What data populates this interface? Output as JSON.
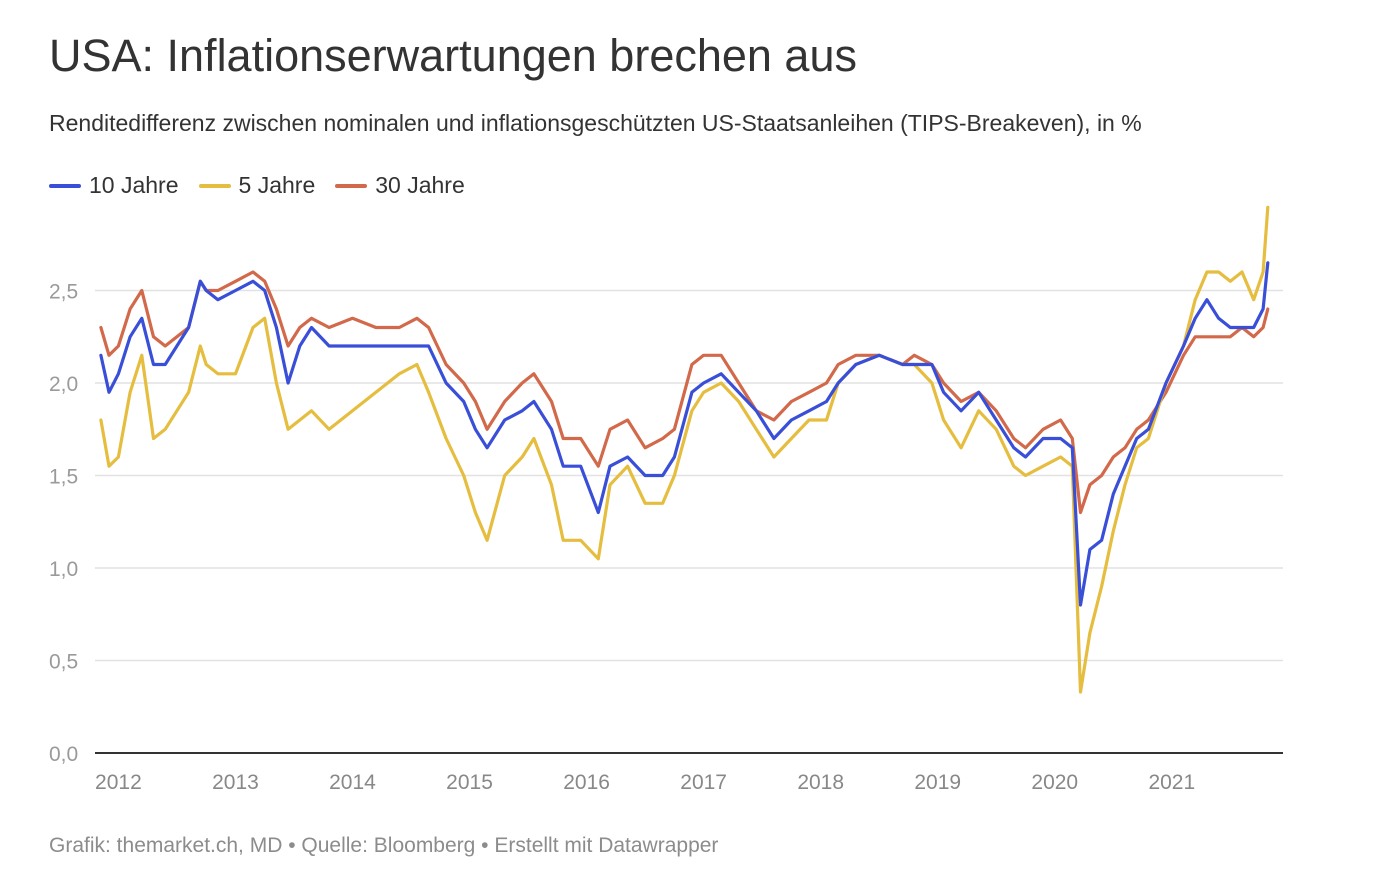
{
  "title": "USA: Inflationserwartungen brechen aus",
  "subtitle": "Renditedifferenz zwischen nominalen und inflationsgeschützten US-Staatsanleihen (TIPS-Breakeven), in %",
  "footer": "Grafik: themarket.ch, MD • Quelle: Bloomberg • Erstellt mit Datawrapper",
  "chart_data": {
    "type": "line",
    "x_unit": "year",
    "xlim": [
      2011.8,
      2021.95
    ],
    "ylim": [
      0,
      3.0
    ],
    "y_ticks": [
      0.0,
      0.5,
      1.0,
      1.5,
      2.0,
      2.5
    ],
    "y_tick_labels": [
      "0,0",
      "0,5",
      "1,0",
      "1,5",
      "2,0",
      "2,5"
    ],
    "x_ticks": [
      2012,
      2013,
      2014,
      2015,
      2016,
      2017,
      2018,
      2019,
      2020,
      2021
    ],
    "x_tick_labels": [
      "2012",
      "2013",
      "2014",
      "2015",
      "2016",
      "2017",
      "2018",
      "2019",
      "2020",
      "2021"
    ],
    "grid": "horizontal",
    "legend_position": "top-left",
    "series": [
      {
        "name": "10 Jahre",
        "color": "#3a4fd8",
        "x": [
          2011.85,
          2011.92,
          2012.0,
          2012.1,
          2012.2,
          2012.3,
          2012.4,
          2012.5,
          2012.6,
          2012.7,
          2012.75,
          2012.85,
          2013.0,
          2013.15,
          2013.25,
          2013.35,
          2013.45,
          2013.55,
          2013.65,
          2013.8,
          2014.0,
          2014.2,
          2014.4,
          2014.55,
          2014.65,
          2014.8,
          2014.95,
          2015.05,
          2015.15,
          2015.3,
          2015.45,
          2015.55,
          2015.7,
          2015.8,
          2015.95,
          2016.1,
          2016.2,
          2016.35,
          2016.5,
          2016.65,
          2016.75,
          2016.9,
          2017.0,
          2017.15,
          2017.3,
          2017.45,
          2017.6,
          2017.75,
          2017.9,
          2018.05,
          2018.15,
          2018.3,
          2018.5,
          2018.7,
          2018.8,
          2018.95,
          2019.05,
          2019.2,
          2019.35,
          2019.5,
          2019.65,
          2019.75,
          2019.9,
          2020.05,
          2020.15,
          2020.22,
          2020.3,
          2020.4,
          2020.5,
          2020.6,
          2020.7,
          2020.8,
          2020.95,
          2021.1,
          2021.2,
          2021.3,
          2021.4,
          2021.5,
          2021.6,
          2021.7,
          2021.78,
          2021.82
        ],
        "values": [
          2.15,
          1.95,
          2.05,
          2.25,
          2.35,
          2.1,
          2.1,
          2.2,
          2.3,
          2.55,
          2.5,
          2.45,
          2.5,
          2.55,
          2.5,
          2.3,
          2.0,
          2.2,
          2.3,
          2.2,
          2.2,
          2.2,
          2.2,
          2.2,
          2.2,
          2.0,
          1.9,
          1.75,
          1.65,
          1.8,
          1.85,
          1.9,
          1.75,
          1.55,
          1.55,
          1.3,
          1.55,
          1.6,
          1.5,
          1.5,
          1.6,
          1.95,
          2.0,
          2.05,
          1.95,
          1.85,
          1.7,
          1.8,
          1.85,
          1.9,
          2.0,
          2.1,
          2.15,
          2.1,
          2.1,
          2.1,
          1.95,
          1.85,
          1.95,
          1.8,
          1.65,
          1.6,
          1.7,
          1.7,
          1.65,
          0.8,
          1.1,
          1.15,
          1.4,
          1.55,
          1.7,
          1.75,
          2.0,
          2.2,
          2.35,
          2.45,
          2.35,
          2.3,
          2.3,
          2.3,
          2.4,
          2.65
        ]
      },
      {
        "name": "5 Jahre",
        "color": "#e5bd3f",
        "x": [
          2011.85,
          2011.92,
          2012.0,
          2012.1,
          2012.2,
          2012.3,
          2012.4,
          2012.5,
          2012.6,
          2012.7,
          2012.75,
          2012.85,
          2013.0,
          2013.15,
          2013.25,
          2013.35,
          2013.45,
          2013.55,
          2013.65,
          2013.8,
          2014.0,
          2014.2,
          2014.4,
          2014.55,
          2014.65,
          2014.8,
          2014.95,
          2015.05,
          2015.15,
          2015.3,
          2015.45,
          2015.55,
          2015.7,
          2015.8,
          2015.95,
          2016.1,
          2016.2,
          2016.35,
          2016.5,
          2016.65,
          2016.75,
          2016.9,
          2017.0,
          2017.15,
          2017.3,
          2017.45,
          2017.6,
          2017.75,
          2017.9,
          2018.05,
          2018.15,
          2018.3,
          2018.5,
          2018.7,
          2018.8,
          2018.95,
          2019.05,
          2019.2,
          2019.35,
          2019.5,
          2019.65,
          2019.75,
          2019.9,
          2020.05,
          2020.15,
          2020.22,
          2020.3,
          2020.4,
          2020.5,
          2020.6,
          2020.7,
          2020.8,
          2020.95,
          2021.1,
          2021.2,
          2021.3,
          2021.4,
          2021.5,
          2021.6,
          2021.7,
          2021.78,
          2021.82
        ],
        "values": [
          1.8,
          1.55,
          1.6,
          1.95,
          2.15,
          1.7,
          1.75,
          1.85,
          1.95,
          2.2,
          2.1,
          2.05,
          2.05,
          2.3,
          2.35,
          2.0,
          1.75,
          1.8,
          1.85,
          1.75,
          1.85,
          1.95,
          2.05,
          2.1,
          1.95,
          1.7,
          1.5,
          1.3,
          1.15,
          1.5,
          1.6,
          1.7,
          1.45,
          1.15,
          1.15,
          1.05,
          1.45,
          1.55,
          1.35,
          1.35,
          1.5,
          1.85,
          1.95,
          2.0,
          1.9,
          1.75,
          1.6,
          1.7,
          1.8,
          1.8,
          2.0,
          2.1,
          2.15,
          2.1,
          2.1,
          2.0,
          1.8,
          1.65,
          1.85,
          1.75,
          1.55,
          1.5,
          1.55,
          1.6,
          1.55,
          0.33,
          0.65,
          0.9,
          1.2,
          1.45,
          1.65,
          1.7,
          2.0,
          2.2,
          2.45,
          2.6,
          2.6,
          2.55,
          2.6,
          2.45,
          2.6,
          2.95
        ]
      },
      {
        "name": "30 Jahre",
        "color": "#d2694a",
        "x": [
          2011.85,
          2011.92,
          2012.0,
          2012.1,
          2012.2,
          2012.3,
          2012.4,
          2012.5,
          2012.6,
          2012.7,
          2012.75,
          2012.85,
          2013.0,
          2013.15,
          2013.25,
          2013.35,
          2013.45,
          2013.55,
          2013.65,
          2013.8,
          2014.0,
          2014.2,
          2014.4,
          2014.55,
          2014.65,
          2014.8,
          2014.95,
          2015.05,
          2015.15,
          2015.3,
          2015.45,
          2015.55,
          2015.7,
          2015.8,
          2015.95,
          2016.1,
          2016.2,
          2016.35,
          2016.5,
          2016.65,
          2016.75,
          2016.9,
          2017.0,
          2017.15,
          2017.3,
          2017.45,
          2017.6,
          2017.75,
          2017.9,
          2018.05,
          2018.15,
          2018.3,
          2018.5,
          2018.7,
          2018.8,
          2018.95,
          2019.05,
          2019.2,
          2019.35,
          2019.5,
          2019.65,
          2019.75,
          2019.9,
          2020.05,
          2020.15,
          2020.22,
          2020.3,
          2020.4,
          2020.5,
          2020.6,
          2020.7,
          2020.8,
          2020.95,
          2021.1,
          2021.2,
          2021.3,
          2021.4,
          2021.5,
          2021.6,
          2021.7,
          2021.78,
          2021.82
        ],
        "values": [
          2.3,
          2.15,
          2.2,
          2.4,
          2.5,
          2.25,
          2.2,
          2.25,
          2.3,
          2.55,
          2.5,
          2.5,
          2.55,
          2.6,
          2.55,
          2.4,
          2.2,
          2.3,
          2.35,
          2.3,
          2.35,
          2.3,
          2.3,
          2.35,
          2.3,
          2.1,
          2.0,
          1.9,
          1.75,
          1.9,
          2.0,
          2.05,
          1.9,
          1.7,
          1.7,
          1.55,
          1.75,
          1.8,
          1.65,
          1.7,
          1.75,
          2.1,
          2.15,
          2.15,
          2.0,
          1.85,
          1.8,
          1.9,
          1.95,
          2.0,
          2.1,
          2.15,
          2.15,
          2.1,
          2.15,
          2.1,
          2.0,
          1.9,
          1.95,
          1.85,
          1.7,
          1.65,
          1.75,
          1.8,
          1.7,
          1.3,
          1.45,
          1.5,
          1.6,
          1.65,
          1.75,
          1.8,
          1.95,
          2.15,
          2.25,
          2.25,
          2.25,
          2.25,
          2.3,
          2.25,
          2.3,
          2.4
        ]
      }
    ]
  }
}
